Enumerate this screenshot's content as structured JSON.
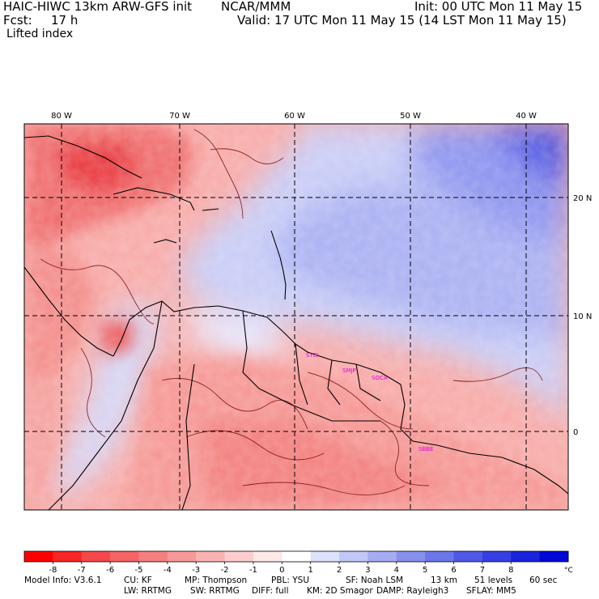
{
  "header": {
    "model": "HAIC-HIWC 13km ARW-GFS init",
    "org": "NCAR/MMM",
    "init": "Init: 00 UTC Mon 11 May 15",
    "fcst_label": "Fcst:",
    "fcst_value": "17 h",
    "valid": "Valid: 17 UTC Mon 11 May 15 (14 LST Mon 11 May 15)",
    "field": "Lifted index"
  },
  "map": {
    "lon_labels": [
      "80 W",
      "70 W",
      "60 W",
      "50 W",
      "40 W"
    ],
    "lat_labels": [
      "20 N",
      "10 N",
      "0"
    ],
    "stations": [
      "SYEI",
      "SMJP",
      "SOCA",
      "SBBE"
    ],
    "colors": {
      "negative_strong": "#e8262e",
      "negative_light": "#f7b5b0",
      "neutral": "#ffffff",
      "positive_light": "#c7cdf5",
      "positive_strong": "#1f2bd9",
      "station": "#e000e0"
    }
  },
  "colorbar": {
    "labels": [
      "-8",
      "-7",
      "-6",
      "-5",
      "-4",
      "-3",
      "-2",
      "-1",
      "0",
      "1",
      "2",
      "3",
      "4",
      "5",
      "6",
      "7",
      "8"
    ],
    "unit": "°C",
    "colors": [
      "#ff0000",
      "#f72626",
      "#f5484b",
      "#f56465",
      "#f57f7f",
      "#f79998",
      "#f9b3b2",
      "#fccdcc",
      "#ffe8e8",
      "#ffffff",
      "#dde1fb",
      "#c1c7f7",
      "#a5acf2",
      "#8890ee",
      "#6c76ea",
      "#5059e5",
      "#3440e1",
      "#1825dc",
      "#0008d6"
    ]
  },
  "footer": {
    "row1": [
      "Model Info: V3.6.1",
      "CU: KF",
      "MP: Thompson",
      "PBL: YSU",
      "SF: Noah LSM",
      "13 km",
      "51 levels",
      "60 sec"
    ],
    "row2": [
      "LW: RRTMG",
      "SW: RRTMG",
      "DIFF: full",
      "KM: 2D Smagor",
      "DAMP: Rayleigh3",
      "SFLAY: MM5"
    ]
  }
}
